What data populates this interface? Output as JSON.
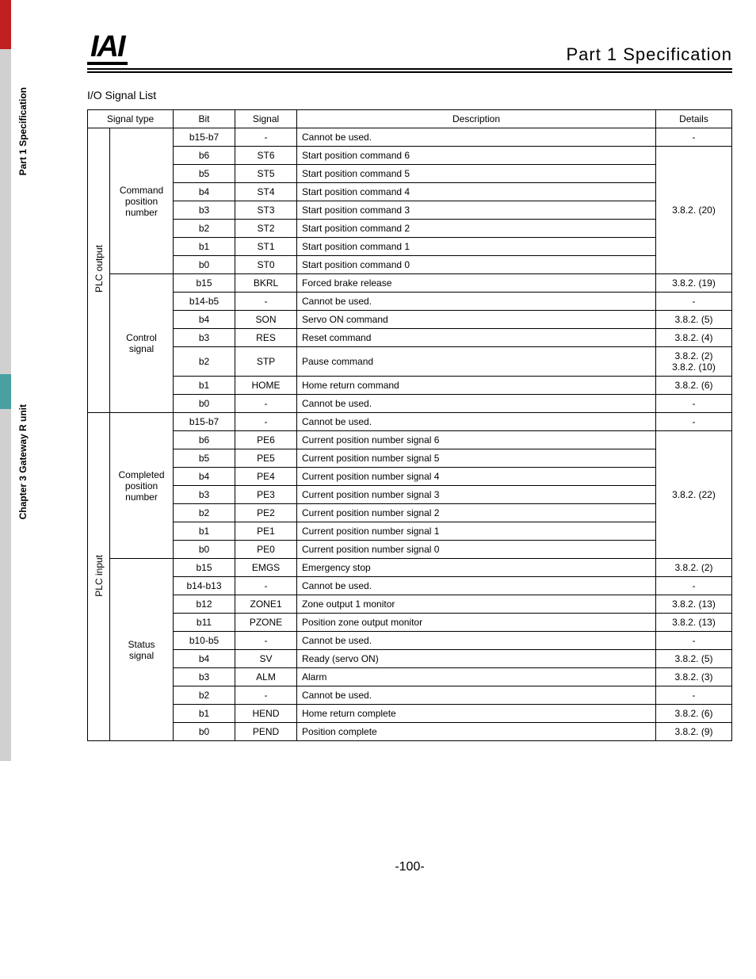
{
  "sidebar": {
    "spec_label": "Part 1 Specification",
    "chapter_label": "Chapter 3 Gateway R unit"
  },
  "header": {
    "logo": "IAI",
    "part_title": "Part 1   Specification"
  },
  "list_title": "I/O Signal List",
  "columns": {
    "signal_type": "Signal type",
    "bit": "Bit",
    "signal": "Signal",
    "description": "Description",
    "details": "Details"
  },
  "groups": [
    {
      "io_label": "PLC output",
      "subgroups": [
        {
          "label": "Command position number",
          "rows": [
            {
              "bit": "b15-b7",
              "signal": "-",
              "desc": "Cannot be used.",
              "details": "-"
            },
            {
              "bit": "b6",
              "signal": "ST6",
              "desc": "Start position command 6"
            },
            {
              "bit": "b5",
              "signal": "ST5",
              "desc": "Start position command 5"
            },
            {
              "bit": "b4",
              "signal": "ST4",
              "desc": "Start position command 4"
            },
            {
              "bit": "b3",
              "signal": "ST3",
              "desc": "Start position command 3"
            },
            {
              "bit": "b2",
              "signal": "ST2",
              "desc": "Start position command 2"
            },
            {
              "bit": "b1",
              "signal": "ST1",
              "desc": "Start position command 1"
            },
            {
              "bit": "b0",
              "signal": "ST0",
              "desc": "Start position command 0"
            }
          ],
          "merged_details": {
            "start": 1,
            "span": 7,
            "text": "3.8.2. (20)"
          }
        },
        {
          "label": "Control signal",
          "rows": [
            {
              "bit": "b15",
              "signal": "BKRL",
              "desc": "Forced brake release",
              "details": "3.8.2. (19)"
            },
            {
              "bit": "b14-b5",
              "signal": "-",
              "desc": "Cannot be used.",
              "details": "-"
            },
            {
              "bit": "b4",
              "signal": "SON",
              "desc": "Servo ON command",
              "details": "3.8.2. (5)"
            },
            {
              "bit": "b3",
              "signal": "RES",
              "desc": "Reset command",
              "details": "3.8.2. (4)"
            },
            {
              "bit": "b2",
              "signal": "STP",
              "desc": "Pause command",
              "details": "3.8.2. (2)\n3.8.2. (10)"
            },
            {
              "bit": "b1",
              "signal": "HOME",
              "desc": "Home return command",
              "details": "3.8.2. (6)"
            },
            {
              "bit": "b0",
              "signal": "-",
              "desc": "Cannot be used.",
              "details": "-"
            }
          ]
        }
      ]
    },
    {
      "io_label": "PLC input",
      "subgroups": [
        {
          "label": "Completed position number",
          "rows": [
            {
              "bit": "b15-b7",
              "signal": "-",
              "desc": "Cannot be used.",
              "details": "-"
            },
            {
              "bit": "b6",
              "signal": "PE6",
              "desc": "Current position number signal 6"
            },
            {
              "bit": "b5",
              "signal": "PE5",
              "desc": "Current position number signal 5"
            },
            {
              "bit": "b4",
              "signal": "PE4",
              "desc": "Current position number signal 4"
            },
            {
              "bit": "b3",
              "signal": "PE3",
              "desc": "Current position number signal 3"
            },
            {
              "bit": "b2",
              "signal": "PE2",
              "desc": "Current position number signal 2"
            },
            {
              "bit": "b1",
              "signal": "PE1",
              "desc": "Current position number signal 1"
            },
            {
              "bit": "b0",
              "signal": "PE0",
              "desc": "Current position number signal 0"
            }
          ],
          "merged_details": {
            "start": 1,
            "span": 7,
            "text": "3.8.2. (22)"
          }
        },
        {
          "label": "Status signal",
          "rows": [
            {
              "bit": "b15",
              "signal": "EMGS",
              "desc": "Emergency stop",
              "details": "3.8.2. (2)"
            },
            {
              "bit": "b14-b13",
              "signal": "-",
              "desc": "Cannot be used.",
              "details": "-"
            },
            {
              "bit": "b12",
              "signal": "ZONE1",
              "desc": "Zone output 1 monitor",
              "details": "3.8.2. (13)"
            },
            {
              "bit": "b11",
              "signal": "PZONE",
              "desc": "Position zone output monitor",
              "details": "3.8.2. (13)"
            },
            {
              "bit": "b10-b5",
              "signal": "-",
              "desc": "Cannot be used.",
              "details": "-"
            },
            {
              "bit": "b4",
              "signal": "SV",
              "desc": "Ready (servo ON)",
              "details": "3.8.2. (5)"
            },
            {
              "bit": "b3",
              "signal": "ALM",
              "desc": "Alarm",
              "details": "3.8.2. (3)"
            },
            {
              "bit": "b2",
              "signal": "-",
              "desc": "Cannot be used.",
              "details": "-"
            },
            {
              "bit": "b1",
              "signal": "HEND",
              "desc": "Home return complete",
              "details": "3.8.2. (6)"
            },
            {
              "bit": "b0",
              "signal": "PEND",
              "desc": "Position complete",
              "details": "3.8.2. (9)"
            }
          ]
        }
      ]
    }
  ],
  "footer": "-100-"
}
